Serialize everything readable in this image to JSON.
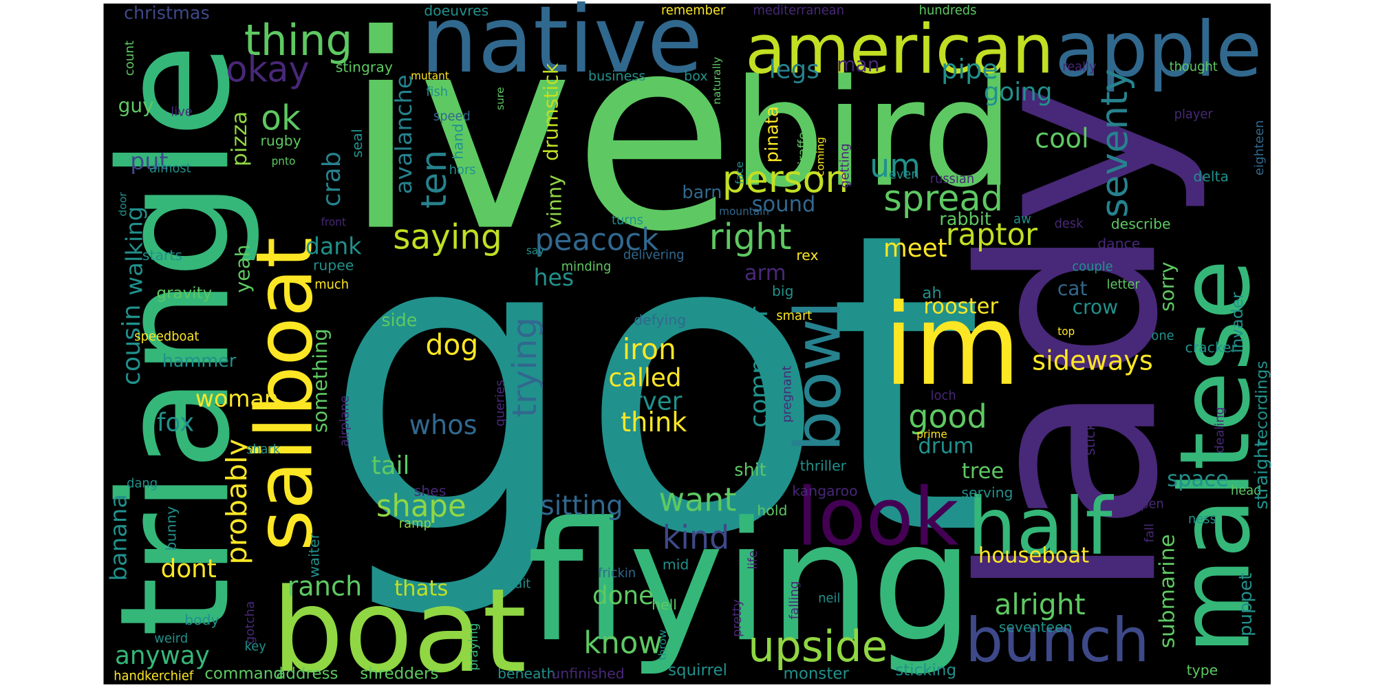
{
  "words": [
    "got",
    "ive",
    "bird",
    "lady",
    "triangle",
    "flying",
    "boat",
    "native",
    "american",
    "apple",
    "maltese",
    "sailboat",
    "im",
    "look",
    "half",
    "bunch",
    "bowl",
    "upside",
    "thing",
    "okay",
    "ok",
    "person",
    "seventy",
    "spread",
    "raptor",
    "right",
    "saying",
    "peacock",
    "um",
    "ten",
    "avalanche",
    "crab",
    "pizza",
    "put",
    "guy",
    "legs",
    "man",
    "pipe",
    "going",
    "cool",
    "drumstick",
    "vinny",
    "hand",
    "hors",
    "business",
    "box",
    "speed",
    "sure",
    "fish",
    "mutant",
    "stingray",
    "naturally",
    "remember",
    "mediterranean",
    "hundreds",
    "christmas",
    "doeuvres",
    "count",
    "live",
    "rugby",
    "seal",
    "pnto",
    "almost",
    "door",
    "starts",
    "front",
    "much",
    "rupee",
    "walking",
    "cousin",
    "gravity",
    "speedboat",
    "yeah",
    "hammer",
    "woman",
    "fox",
    "dank",
    "something",
    "airplane",
    "probably",
    "banana",
    "bunny",
    "dang",
    "shark",
    "tail",
    "shape",
    "sitting",
    "dont",
    "ranch",
    "thats",
    "waiter",
    "shes",
    "ramp",
    "anyway",
    "body",
    "gotcha",
    "weird",
    "key",
    "handkerchief",
    "command",
    "address",
    "shredders",
    "praying",
    "beneath",
    "unfinished",
    "squirrel",
    "know",
    "done",
    "kind",
    "want",
    "wait",
    "frickin",
    "hell",
    "mid",
    "throw",
    "pretty",
    "life",
    "hold",
    "kangaroo",
    "neil",
    "falling",
    "monster",
    "sticking",
    "thriller",
    "shit",
    "drum",
    "tree",
    "serving",
    "houseboat",
    "alright",
    "seventeen",
    "submarine",
    "puppet",
    "type",
    "space",
    "head",
    "happen",
    "fall",
    "ness",
    "straight",
    "recordings",
    "invader",
    "sorry",
    "describe",
    "couple",
    "letter",
    "dance",
    "delta",
    "eighteen",
    "player",
    "thought",
    "really",
    "cracker",
    "one",
    "top",
    "crow",
    "cat",
    "sideways",
    "good",
    "rooster",
    "meet",
    "rex",
    "rabbit",
    "aw",
    "desk",
    "russian",
    "even",
    "getting",
    "giraffe",
    "coming",
    "face",
    "mountain",
    "turns",
    "minding",
    "delivering",
    "say",
    "hes",
    "arm",
    "sound",
    "barn",
    "pinata",
    "big",
    "smart",
    "computer",
    "pregnant",
    "defying",
    "side",
    "dog",
    "trying",
    "iron",
    "called",
    "server",
    "think",
    "whos",
    "queries",
    "dealing",
    "loch",
    "prime",
    "stick",
    "ah"
  ]
}
